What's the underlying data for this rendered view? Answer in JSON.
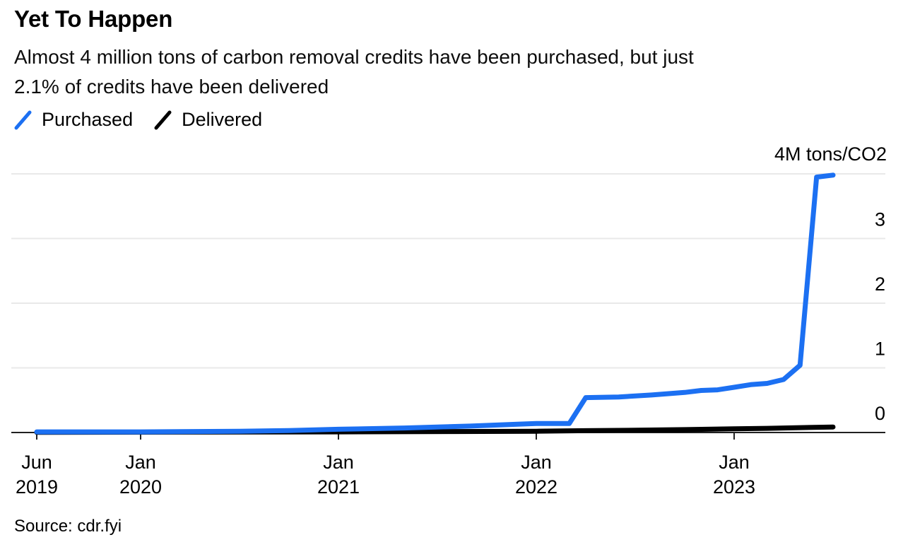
{
  "header": {
    "title": "Yet To Happen",
    "subtitle_line1": "Almost 4 million tons of carbon removal credits have been purchased, but just",
    "subtitle_line2": "2.1% of credits have been delivered"
  },
  "legend": [
    {
      "label": "Purchased",
      "color": "#1c70f2"
    },
    {
      "label": "Delivered",
      "color": "#000000"
    }
  ],
  "source": "Source: cdr.fyi",
  "chart_data": {
    "type": "line",
    "title": "Yet To Happen",
    "unit_label": "4M tons/CO2",
    "ylabel": "M tons/CO2",
    "y_axis": {
      "ticks": [
        0,
        1,
        2,
        3
      ],
      "top_label": "4M tons/CO2",
      "range": [
        0,
        4.1
      ],
      "side": "right",
      "gridlines": true
    },
    "x_axis": {
      "ticks": [
        {
          "month": "Jun",
          "year": "2019",
          "date": "2019-06"
        },
        {
          "month": "Jan",
          "year": "2020",
          "date": "2020-01"
        },
        {
          "month": "Jan",
          "year": "2021",
          "date": "2021-01"
        },
        {
          "month": "Jan",
          "year": "2022",
          "date": "2022-01"
        },
        {
          "month": "Jan",
          "year": "2023",
          "date": "2023-01"
        }
      ]
    },
    "series": [
      {
        "name": "Purchased",
        "color": "#1c70f2",
        "points": [
          {
            "date": "2019-06",
            "value": 0.01
          },
          {
            "date": "2019-09",
            "value": 0.01
          },
          {
            "date": "2020-01",
            "value": 0.01
          },
          {
            "date": "2020-07",
            "value": 0.02
          },
          {
            "date": "2020-10",
            "value": 0.03
          },
          {
            "date": "2021-01",
            "value": 0.05
          },
          {
            "date": "2021-05",
            "value": 0.07
          },
          {
            "date": "2021-09",
            "value": 0.1
          },
          {
            "date": "2021-12",
            "value": 0.13
          },
          {
            "date": "2022-01",
            "value": 0.14
          },
          {
            "date": "2022-03",
            "value": 0.14
          },
          {
            "date": "2022-04",
            "value": 0.54
          },
          {
            "date": "2022-06",
            "value": 0.55
          },
          {
            "date": "2022-08",
            "value": 0.58
          },
          {
            "date": "2022-10",
            "value": 0.62
          },
          {
            "date": "2022-11",
            "value": 0.65
          },
          {
            "date": "2022-12",
            "value": 0.66
          },
          {
            "date": "2023-01",
            "value": 0.7
          },
          {
            "date": "2023-02",
            "value": 0.74
          },
          {
            "date": "2023-03",
            "value": 0.76
          },
          {
            "date": "2023-04",
            "value": 0.82
          },
          {
            "date": "2023-05",
            "value": 1.04
          },
          {
            "date": "2023-06",
            "value": 3.95
          },
          {
            "date": "2023-07",
            "value": 3.98
          }
        ]
      },
      {
        "name": "Delivered",
        "color": "#000000",
        "points": [
          {
            "date": "2019-06",
            "value": 0.002
          },
          {
            "date": "2020-01",
            "value": 0.005
          },
          {
            "date": "2021-01",
            "value": 0.01
          },
          {
            "date": "2021-08",
            "value": 0.015
          },
          {
            "date": "2022-01",
            "value": 0.02
          },
          {
            "date": "2022-04",
            "value": 0.028
          },
          {
            "date": "2022-07",
            "value": 0.035
          },
          {
            "date": "2022-10",
            "value": 0.045
          },
          {
            "date": "2023-01",
            "value": 0.058
          },
          {
            "date": "2023-03",
            "value": 0.065
          },
          {
            "date": "2023-05",
            "value": 0.075
          },
          {
            "date": "2023-07",
            "value": 0.085
          }
        ]
      }
    ]
  }
}
